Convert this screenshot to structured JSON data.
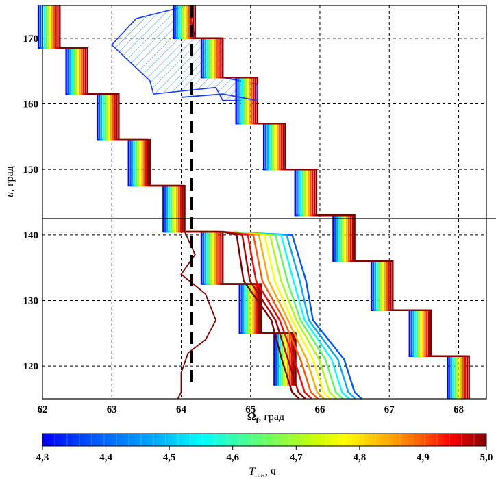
{
  "chart_data": {
    "type": "line",
    "xlabel": "Ω",
    "xlabel_sub": "f",
    "xlabel_unit": ", град",
    "ylabel": "u",
    "ylabel_unit": ", град",
    "xlim": [
      62.0,
      68.4
    ],
    "ylim": [
      115,
      175
    ],
    "xticks": [
      62,
      63,
      64,
      65,
      66,
      67,
      68
    ],
    "yticks": [
      120,
      130,
      140,
      150,
      160,
      170
    ],
    "grid": true,
    "reference_line": {
      "style": "dashed",
      "x": 64.15
    },
    "hline": {
      "y": 142.5
    },
    "colorbar": {
      "label": "T",
      "label_sub": "п.н",
      "label_unit": ", ч",
      "min": 4.3,
      "max": 5.0,
      "ticks": [
        "4,3",
        "4,4",
        "4,5",
        "4,6",
        "4,7",
        "4,8",
        "4,9",
        "5,0"
      ],
      "colors": [
        "#0000ff",
        "#0055ff",
        "#00aaff",
        "#00ffff",
        "#55ff55",
        "#aaff00",
        "#ffff00",
        "#ffaa00",
        "#ff5500",
        "#ff0000",
        "#aa0000",
        "#800000"
      ]
    },
    "series": [
      {
        "color": "#800000",
        "boundary_left": [
          [
            62.25,
            175
          ],
          [
            62.25,
            168.5
          ],
          [
            62.65,
            168.5
          ],
          [
            62.65,
            161.5
          ],
          [
            63.1,
            161.5
          ],
          [
            63.1,
            154.5
          ],
          [
            63.55,
            154.5
          ],
          [
            63.55,
            147.5
          ],
          [
            64.05,
            147.5
          ],
          [
            64.05,
            140.5
          ],
          [
            64.6,
            140.5
          ],
          [
            64.6,
            132.5
          ],
          [
            65.15,
            132.5
          ],
          [
            65.15,
            125
          ],
          [
            65.65,
            125
          ],
          [
            65.65,
            117
          ]
        ],
        "boundary_right": [
          [
            64.2,
            175
          ],
          [
            64.2,
            170
          ],
          [
            64.6,
            170
          ],
          [
            64.6,
            164
          ],
          [
            65.1,
            164
          ],
          [
            65.1,
            157
          ],
          [
            65.5,
            157
          ],
          [
            65.5,
            150
          ],
          [
            65.95,
            150
          ],
          [
            65.95,
            143
          ],
          [
            66.5,
            143
          ],
          [
            66.5,
            136
          ],
          [
            67.05,
            136
          ],
          [
            67.05,
            128.5
          ],
          [
            67.6,
            128.5
          ],
          [
            67.6,
            121.5
          ],
          [
            68.15,
            121.5
          ],
          [
            68.15,
            115
          ]
        ],
        "tail": [
          [
            64.05,
            140.5
          ],
          [
            64.2,
            137
          ],
          [
            64.0,
            134
          ],
          [
            64.35,
            131
          ],
          [
            64.5,
            127
          ],
          [
            64.35,
            124
          ],
          [
            64.1,
            122
          ],
          [
            64.0,
            119
          ],
          [
            64.0,
            116
          ],
          [
            63.95,
            115
          ]
        ]
      }
    ]
  }
}
